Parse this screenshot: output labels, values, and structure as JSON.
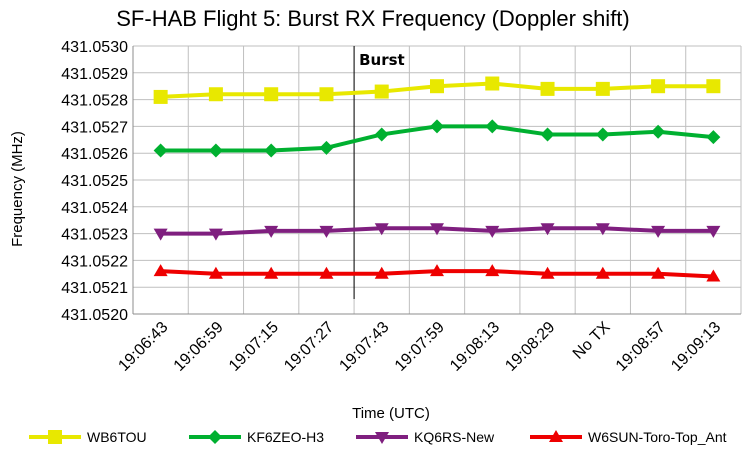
{
  "chart_data": {
    "type": "line",
    "title": "SF-HAB Flight 5: Burst RX Frequency (Doppler shift)",
    "xlabel": "Time (UTC)",
    "ylabel": "Frequency (MHz)",
    "ylim": [
      431.052,
      431.053
    ],
    "yticks": [
      "431.0530",
      "431.0529",
      "431.0528",
      "431.0527",
      "431.0526",
      "431.0525",
      "431.0524",
      "431.0523",
      "431.0522",
      "431.0521",
      "431.0520"
    ],
    "categories": [
      "19:06:43",
      "19:06:59",
      "19:07:15",
      "19:07:27",
      "19:07:43",
      "19:07:59",
      "19:08:13",
      "19:08:29",
      "No TX",
      "19:08:57",
      "19:09:13"
    ],
    "grid": true,
    "legend_position": "bottom",
    "annotation": {
      "label": "Burst",
      "at_index": 3.5
    },
    "series": [
      {
        "name": "WB6TOU",
        "color": "#e8e800",
        "marker": "square",
        "values": [
          431.05281,
          431.05282,
          431.05282,
          431.05282,
          431.05283,
          431.05285,
          431.05286,
          431.05284,
          431.05284,
          431.05285,
          431.05285
        ]
      },
      {
        "name": "KF6ZEO-H3",
        "color": "#00b030",
        "marker": "diamond",
        "values": [
          431.05261,
          431.05261,
          431.05261,
          431.05262,
          431.05267,
          431.0527,
          431.0527,
          431.05267,
          431.05267,
          431.05268,
          431.05266
        ]
      },
      {
        "name": "KQ6RS-New",
        "color": "#7f1f7f",
        "marker": "triangle-down",
        "values": [
          431.0523,
          431.0523,
          431.05231,
          431.05231,
          431.05232,
          431.05232,
          431.05231,
          431.05232,
          431.05232,
          431.05231,
          431.05231
        ]
      },
      {
        "name": "W6SUN-Toro-Top_Ant",
        "color": "#ee0000",
        "marker": "triangle-up",
        "values": [
          431.05216,
          431.05215,
          431.05215,
          431.05215,
          431.05215,
          431.05216,
          431.05216,
          431.05215,
          431.05215,
          431.05215,
          431.05214
        ]
      }
    ]
  }
}
